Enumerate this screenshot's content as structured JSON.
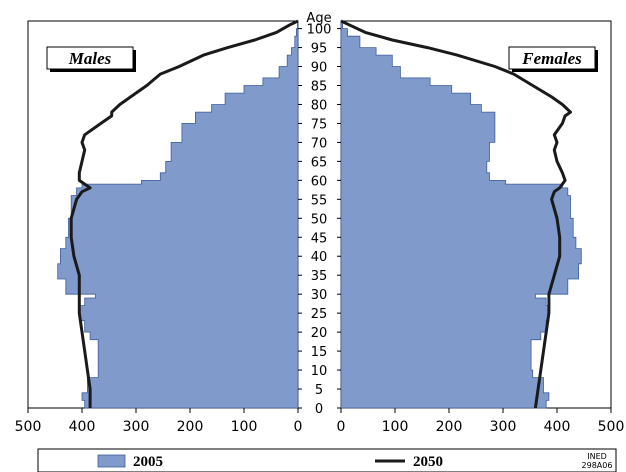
{
  "chart_data": {
    "type": "population-pyramid",
    "age_axis_label": "Age",
    "age_ticks": [
      0,
      5,
      10,
      15,
      20,
      25,
      30,
      35,
      40,
      45,
      50,
      55,
      60,
      65,
      70,
      75,
      80,
      85,
      90,
      95,
      100
    ],
    "x_ticks_males": [
      500,
      400,
      300,
      200,
      100,
      0
    ],
    "x_ticks_females": [
      0,
      100,
      200,
      300,
      400,
      500
    ],
    "xlim": [
      0,
      500
    ],
    "ylim": [
      0,
      102
    ],
    "panels": {
      "left": "Males",
      "right": "Females"
    },
    "legend": [
      {
        "label": "2005",
        "style": "bars",
        "color": "#7f9acb"
      },
      {
        "label": "2050",
        "style": "line",
        "color": "#1a1a1a"
      }
    ],
    "credit": [
      "INED",
      "298A06"
    ],
    "series_2005": {
      "age_points": [
        0,
        2,
        4,
        8,
        10,
        18,
        20,
        23,
        27,
        29,
        30,
        34,
        38,
        42,
        45,
        50,
        54,
        56,
        58,
        59,
        60,
        62,
        65,
        70,
        75,
        78,
        80,
        83,
        85,
        87,
        90,
        93,
        95,
        98,
        100,
        102
      ],
      "males": [
        395,
        400,
        390,
        370,
        370,
        385,
        395,
        405,
        395,
        375,
        430,
        445,
        440,
        430,
        425,
        420,
        420,
        410,
        400,
        290,
        255,
        245,
        235,
        215,
        190,
        160,
        135,
        100,
        65,
        35,
        20,
        12,
        6,
        3,
        1,
        0
      ],
      "females": [
        380,
        385,
        375,
        355,
        352,
        370,
        380,
        385,
        380,
        360,
        420,
        440,
        445,
        435,
        430,
        425,
        425,
        420,
        410,
        305,
        275,
        270,
        275,
        285,
        285,
        260,
        240,
        205,
        165,
        110,
        95,
        65,
        35,
        12,
        3,
        0
      ]
    },
    "series_2050": {
      "age_points": [
        0,
        5,
        10,
        15,
        20,
        25,
        30,
        35,
        40,
        45,
        50,
        55,
        57,
        58,
        60,
        62,
        65,
        68,
        70,
        72,
        75,
        77,
        78,
        80,
        82,
        85,
        88,
        90,
        93,
        95,
        97,
        99,
        101,
        102
      ],
      "males": [
        385,
        385,
        390,
        395,
        400,
        405,
        405,
        405,
        415,
        420,
        420,
        410,
        400,
        385,
        405,
        405,
        400,
        395,
        400,
        395,
        365,
        345,
        345,
        330,
        310,
        280,
        255,
        220,
        175,
        130,
        80,
        40,
        15,
        0
      ],
      "females": [
        360,
        365,
        370,
        375,
        380,
        385,
        385,
        395,
        405,
        405,
        400,
        390,
        395,
        405,
        415,
        410,
        400,
        395,
        400,
        395,
        410,
        415,
        425,
        410,
        390,
        355,
        320,
        285,
        215,
        160,
        95,
        45,
        15,
        0
      ]
    }
  }
}
